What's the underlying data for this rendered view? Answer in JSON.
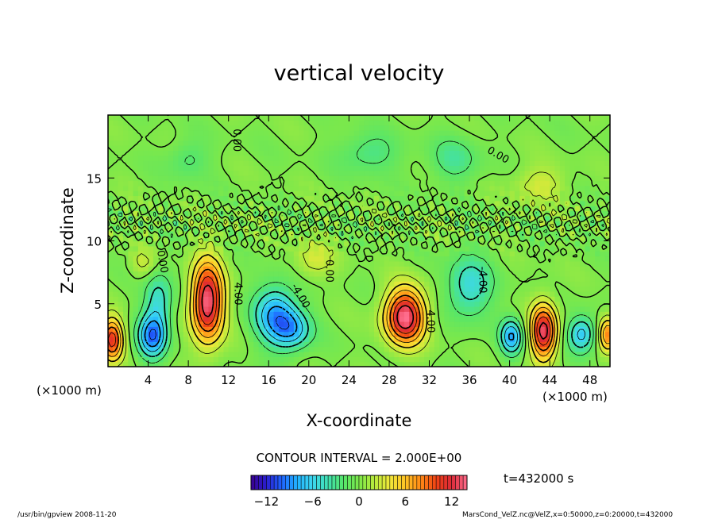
{
  "chart_data": {
    "type": "heatmap",
    "title": "vertical velocity",
    "xlabel": "X-coordinate",
    "ylabel": "Z-coordinate",
    "x_unit_left": "(×1000 m)",
    "x_unit_right": "(×1000 m)",
    "xlim": [
      0,
      50
    ],
    "ylim": [
      0,
      20
    ],
    "x_ticks": [
      4,
      8,
      12,
      16,
      20,
      24,
      28,
      32,
      36,
      40,
      44,
      48
    ],
    "y_ticks": [
      5,
      10,
      15
    ],
    "contour_interval_text": "CONTOUR INTERVAL = 2.000E+00",
    "contour_labels": [
      {
        "text": "4.00",
        "x": 12.6,
        "z": 5.8,
        "rot": 90
      },
      {
        "text": "4.00",
        "x": 31.8,
        "z": 3.6,
        "rot": 90
      },
      {
        "text": "-4.00",
        "x": 18.9,
        "z": 5.5,
        "rot": 60
      },
      {
        "text": "-4.00",
        "x": 37.0,
        "z": 6.9,
        "rot": 90
      },
      {
        "text": "0.00",
        "x": 5.1,
        "z": 8.3,
        "rot": 80
      },
      {
        "text": "0.00",
        "x": 21.7,
        "z": 7.6,
        "rot": 90
      },
      {
        "text": "0.00",
        "x": 12.5,
        "z": 18.0,
        "rot": 90
      },
      {
        "text": "0.00",
        "x": 38.7,
        "z": 16.6,
        "rot": 30
      }
    ],
    "colorbar": {
      "min": -14,
      "max": 14,
      "tick_values": [
        -12,
        -6,
        0,
        6,
        12
      ],
      "tick_labels": [
        "−12",
        "−6",
        "0",
        "6",
        "12"
      ],
      "colormap": [
        "#3a0090",
        "#2a1fd0",
        "#1f64ff",
        "#22b4ff",
        "#3dd7f0",
        "#40e0b0",
        "#56e66a",
        "#7de84a",
        "#b8ea3c",
        "#f1e83a",
        "#ffc324",
        "#ff8a16",
        "#f04214",
        "#dc2a38",
        "#ff6e8e"
      ]
    },
    "features": [
      {
        "x": 0.4,
        "z": 2.2,
        "amp": 11,
        "sx": 1.1,
        "sz": 1.7
      },
      {
        "x": 4.4,
        "z": 2.4,
        "amp": -9,
        "sx": 1.4,
        "sz": 1.7
      },
      {
        "x": 5.0,
        "z": 5.2,
        "amp": -5,
        "sx": 1.4,
        "sz": 2.4
      },
      {
        "x": 9.9,
        "z": 5.2,
        "amp": 14,
        "sx": 1.6,
        "sz": 3.2
      },
      {
        "x": 16.7,
        "z": 4.2,
        "amp": -8,
        "sx": 2.1,
        "sz": 2.3
      },
      {
        "x": 18.4,
        "z": 2.9,
        "amp": -6,
        "sx": 1.9,
        "sz": 1.6
      },
      {
        "x": 29.6,
        "z": 4.0,
        "amp": 14,
        "sx": 2.0,
        "sz": 2.2
      },
      {
        "x": 36.0,
        "z": 6.4,
        "amp": -5.5,
        "sx": 2.2,
        "sz": 2.4
      },
      {
        "x": 40.2,
        "z": 2.4,
        "amp": -8,
        "sx": 1.1,
        "sz": 1.4
      },
      {
        "x": 43.4,
        "z": 2.8,
        "amp": 13,
        "sx": 1.3,
        "sz": 2.2
      },
      {
        "x": 47.2,
        "z": 2.6,
        "amp": -7,
        "sx": 1.4,
        "sz": 1.4
      },
      {
        "x": 49.8,
        "z": 2.6,
        "amp": 8,
        "sx": 1.0,
        "sz": 1.4
      },
      {
        "x": 20.5,
        "z": 8.5,
        "amp": 3,
        "sx": 2.0,
        "sz": 1.5
      },
      {
        "x": 3.5,
        "z": 8.2,
        "amp": 2.5,
        "sx": 1.3,
        "sz": 1.2
      },
      {
        "x": 34.5,
        "z": 16.5,
        "amp": -3,
        "sx": 2.5,
        "sz": 1.8
      },
      {
        "x": 26.0,
        "z": 17.0,
        "amp": -3,
        "sx": 3.0,
        "sz": 1.6
      },
      {
        "x": 8.0,
        "z": 16.5,
        "amp": -2.5,
        "sx": 2.0,
        "sz": 1.5
      },
      {
        "x": 43.0,
        "z": 14.5,
        "amp": 3,
        "sx": 2.5,
        "sz": 1.5
      }
    ]
  },
  "time_label": "t=432000 s",
  "footer_left": "/usr/bin/gpview  2008-11-20",
  "footer_right": "MarsCond_VelZ.nc@VelZ,x=0:50000,z=0:20000,t=432000"
}
